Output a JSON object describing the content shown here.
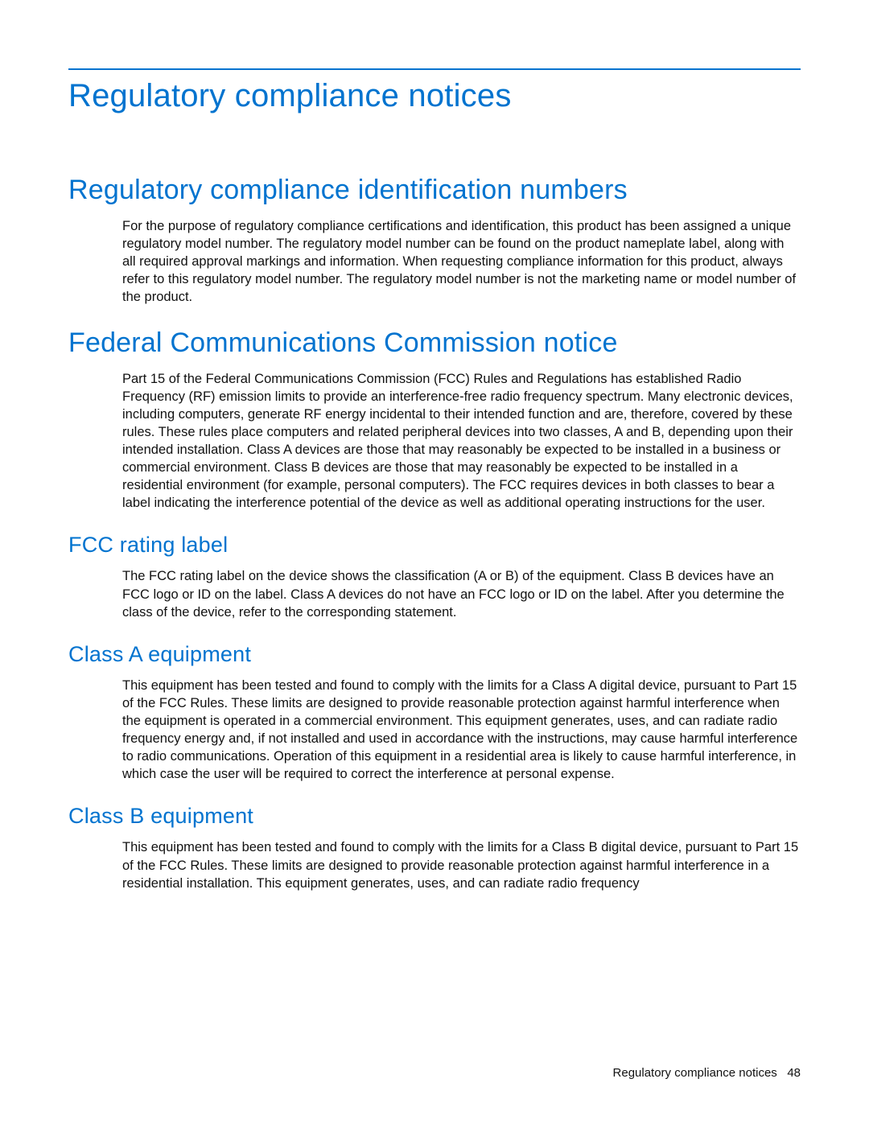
{
  "colors": {
    "heading": "#0073cf",
    "rule": "#0073cf",
    "text": "#111111",
    "background": "#ffffff"
  },
  "typography": {
    "h1_fontsize": 40,
    "h2_fontsize": 34,
    "h3_fontsize": 27,
    "body_fontsize": 16.5,
    "footer_fontsize": 15,
    "heading_weight": 400,
    "line_height": 1.34
  },
  "title": "Regulatory compliance notices",
  "sections": [
    {
      "heading": "Regulatory compliance identification numbers",
      "body": "For the purpose of regulatory compliance certifications and identification, this product has been assigned a unique regulatory model number. The regulatory model number can be found on the product nameplate label, along with all required approval markings and information. When requesting compliance information for this product, always refer to this regulatory model number. The regulatory model number is not the marketing name or model number of the product."
    },
    {
      "heading": "Federal Communications Commission notice",
      "body": "Part 15 of the Federal Communications Commission (FCC) Rules and Regulations has established Radio Frequency (RF) emission limits to provide an interference-free radio frequency spectrum. Many electronic devices, including computers, generate RF energy incidental to their intended function and are, therefore, covered by these rules. These rules place computers and related peripheral devices into two classes, A and B, depending upon their intended installation. Class A devices are those that may reasonably be expected to be installed in a business or commercial environment. Class B devices are those that may reasonably be expected to be installed in a residential environment (for example, personal computers). The FCC requires devices in both classes to bear a label indicating the interference potential of the device as well as additional operating instructions for the user."
    }
  ],
  "subsections": [
    {
      "heading": "FCC rating label",
      "body": "The FCC rating label on the device shows the classification (A or B) of the equipment. Class B devices have an FCC logo or ID on the label. Class A devices do not have an FCC logo or ID on the label. After you determine the class of the device, refer to the corresponding statement."
    },
    {
      "heading": "Class A equipment",
      "body": "This equipment has been tested and found to comply with the limits for a Class A digital device, pursuant to Part 15 of the FCC Rules. These limits are designed to provide reasonable protection against harmful interference when the equipment is operated in a commercial environment. This equipment generates, uses, and can radiate radio frequency energy and, if not installed and used in accordance with the instructions, may cause harmful interference to radio communications. Operation of this equipment in a residential area is likely to cause harmful interference, in which case the user will be required to correct the interference at personal expense."
    },
    {
      "heading": "Class B equipment",
      "body": "This equipment has been tested and found to comply with the limits for a Class B digital device, pursuant to Part 15 of the FCC Rules. These limits are designed to provide reasonable protection against harmful interference in a residential installation. This equipment generates, uses, and can radiate radio frequency"
    }
  ],
  "footer": {
    "text": "Regulatory compliance notices",
    "page": "48"
  }
}
